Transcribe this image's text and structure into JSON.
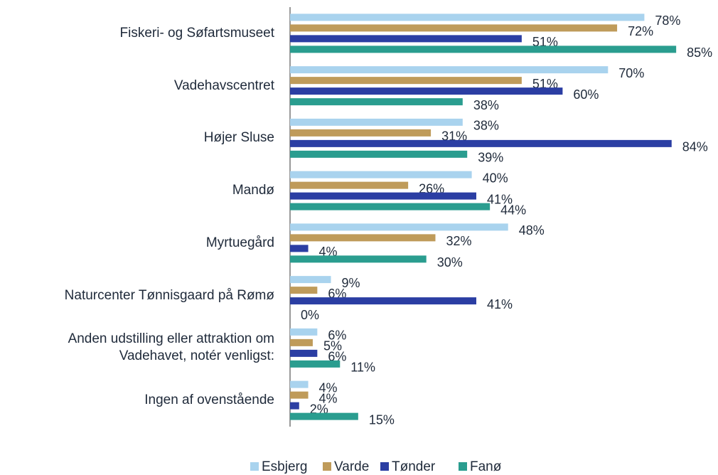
{
  "chart_data": {
    "type": "bar",
    "orientation": "horizontal",
    "categories": [
      "Fiskeri- og Søfartsmuseet",
      "Vadehavscentret",
      "Højer Sluse",
      "Mandø",
      "Myrtuegård",
      "Naturcenter Tønnisgaard på Rømø",
      "Anden udstilling eller attraktion om Vadehavet, notér venligst:",
      "Ingen af ovenstående"
    ],
    "series": [
      {
        "name": "Esbjerg",
        "color": "#a9d3ee",
        "values": [
          78,
          70,
          38,
          40,
          48,
          9,
          6,
          4
        ],
        "value_labels": [
          "78%",
          "70%",
          "38%",
          "40%",
          "48%",
          "9%",
          "6%",
          "4%"
        ]
      },
      {
        "name": "Varde",
        "color": "#bf9b5a",
        "values": [
          72,
          51,
          31,
          26,
          32,
          6,
          5,
          4
        ],
        "value_labels": [
          "72%",
          "51%",
          "31%",
          "26%",
          "32%",
          "6%",
          "5%",
          "4%"
        ]
      },
      {
        "name": "Tønder",
        "color": "#2b3ea3",
        "values": [
          51,
          60,
          84,
          41,
          4,
          41,
          6,
          2
        ],
        "value_labels": [
          "51%",
          "60%",
          "84%",
          "41%",
          "4%",
          "41%",
          "6%",
          "2%"
        ]
      },
      {
        "name": "Fanø",
        "color": "#2a9d8f",
        "values": [
          85,
          38,
          39,
          44,
          30,
          0,
          11,
          15
        ],
        "value_labels": [
          "85%",
          "38%",
          "39%",
          "44%",
          "30%",
          "0%",
          "11%",
          "15%"
        ]
      }
    ],
    "xlim": [
      0,
      100
    ],
    "legend": "bottom"
  }
}
